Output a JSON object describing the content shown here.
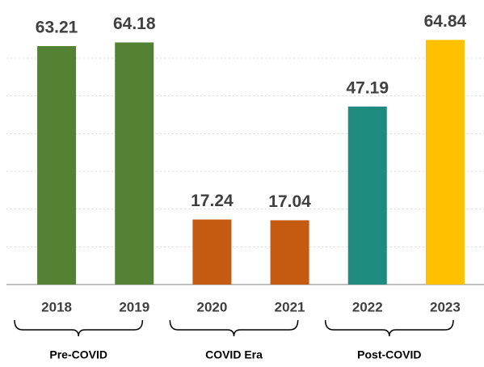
{
  "chart_data": {
    "type": "bar",
    "categories": [
      "2018",
      "2019",
      "2020",
      "2021",
      "2022",
      "2023"
    ],
    "values": [
      63.21,
      64.18,
      17.24,
      17.04,
      47.19,
      64.84
    ],
    "colors": [
      "#548235",
      "#548235",
      "#c55a11",
      "#c55a11",
      "#1f8a80",
      "#ffc000"
    ],
    "groups": [
      "Pre-COVID",
      "COVID Era",
      "Post-COVID"
    ],
    "ylim": [
      0,
      75
    ],
    "yticks": [
      0,
      10,
      20,
      30,
      40,
      50,
      60
    ],
    "grid": true
  }
}
